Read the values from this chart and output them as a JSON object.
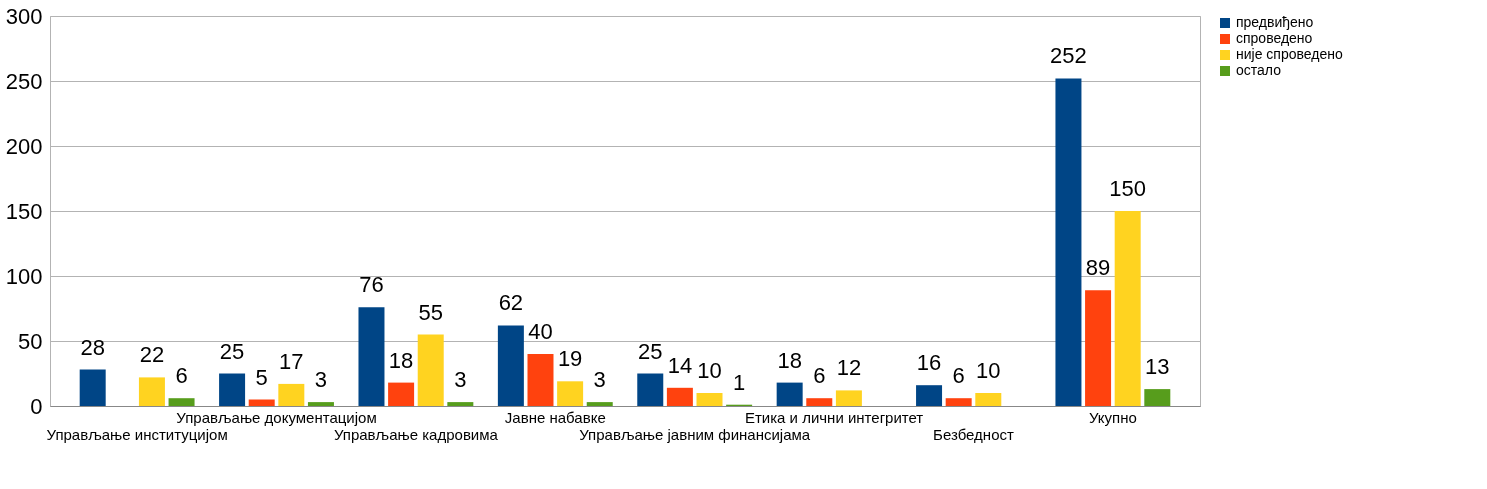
{
  "chart_data": {
    "type": "bar",
    "categories": [
      "Управљање институцијом",
      "Управљање документацијом",
      "Управљање кадровима",
      "Јавне набавке",
      "Управљање јавним финансијама",
      "Етика и лични интегритет",
      "Безбедност",
      "Укупно"
    ],
    "series": [
      {
        "name": "предвиђено",
        "color": "#004586",
        "values": [
          28,
          25,
          76,
          62,
          25,
          18,
          16,
          252
        ]
      },
      {
        "name": "спроведено",
        "color": "#ff420e",
        "values": [
          null,
          5,
          18,
          40,
          14,
          6,
          6,
          89
        ]
      },
      {
        "name": "није спроведено",
        "color": "#ffd320",
        "values": [
          22,
          17,
          55,
          19,
          10,
          12,
          10,
          150
        ]
      },
      {
        "name": "остало",
        "color": "#579d1c",
        "values": [
          6,
          3,
          3,
          3,
          1,
          null,
          null,
          13
        ]
      }
    ],
    "ylim": [
      0,
      300
    ],
    "yticks": [
      0,
      50,
      100,
      150,
      200,
      250,
      300
    ],
    "grid": "y",
    "legend": "right",
    "data_labels": true
  }
}
